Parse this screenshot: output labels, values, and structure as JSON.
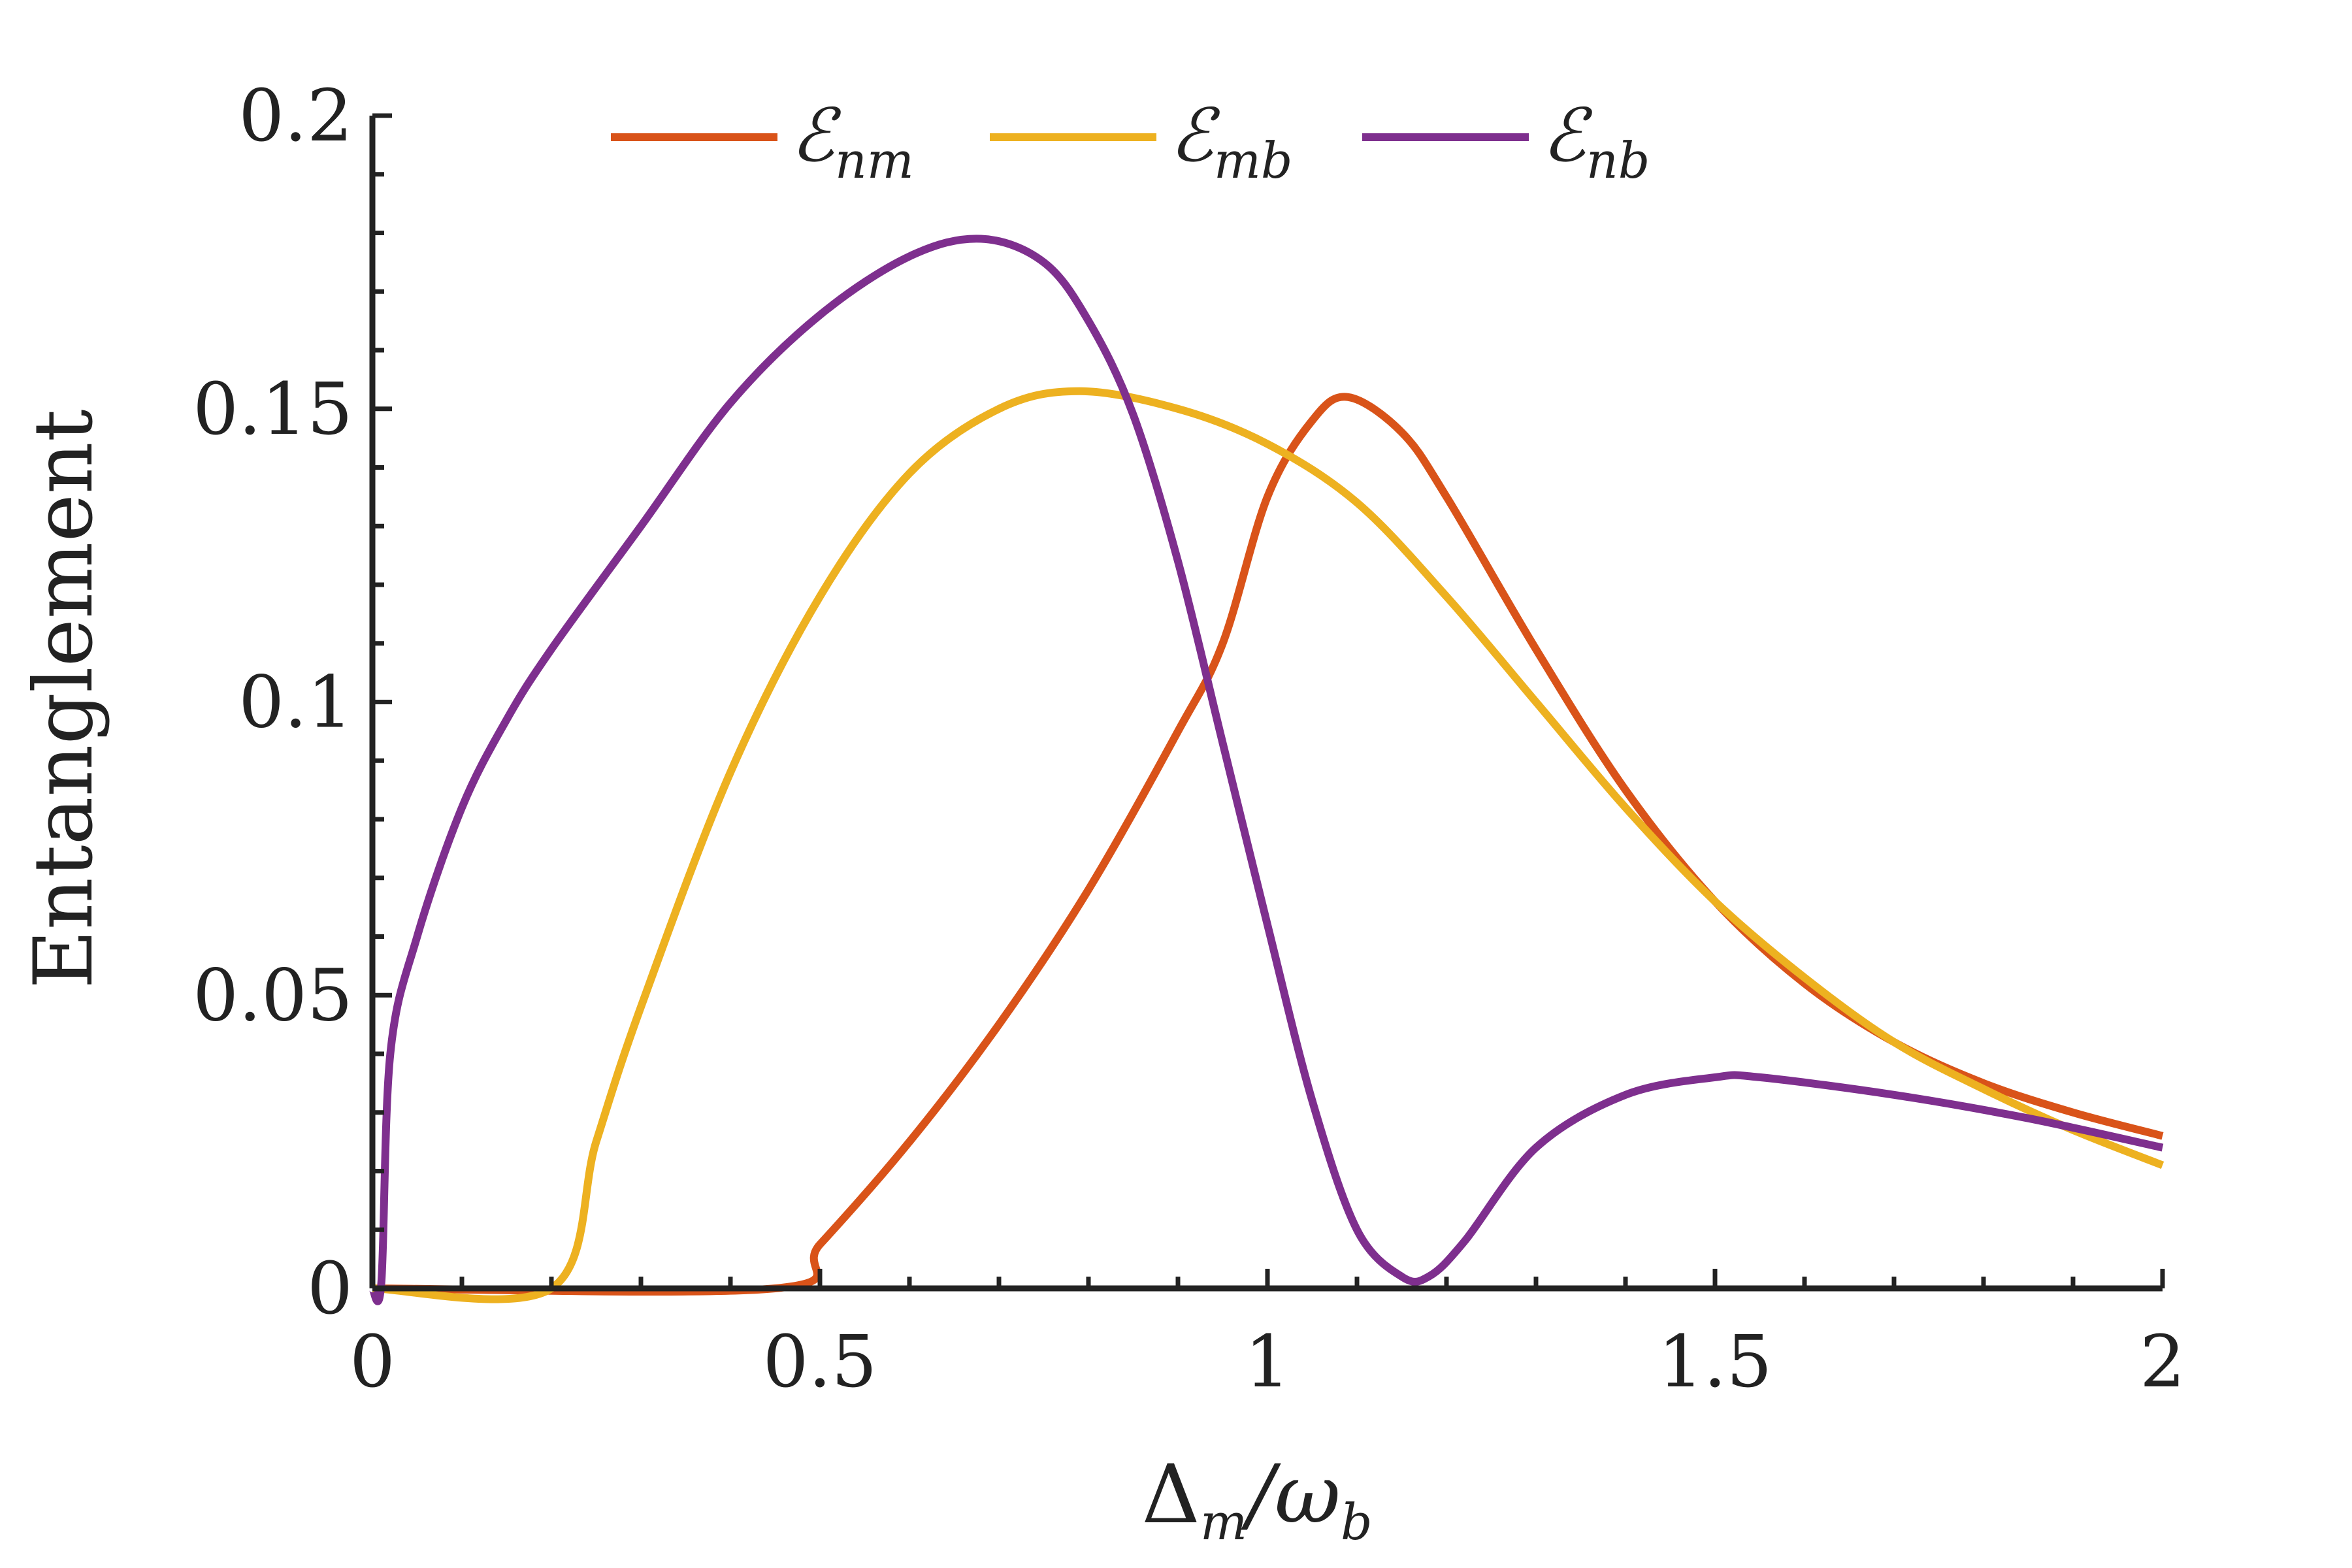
{
  "chart_data": {
    "type": "line",
    "title": "",
    "xlabel": {
      "main": "Δ",
      "sub1": "m",
      "sep": "/ω",
      "sub2": "b"
    },
    "ylabel": "Entanglement",
    "xlim": [
      0,
      2
    ],
    "ylim": [
      0,
      0.2
    ],
    "xticks": [
      {
        "value": 0,
        "label": "0"
      },
      {
        "value": 0.5,
        "label": "0.5"
      },
      {
        "value": 1,
        "label": "1"
      },
      {
        "value": 1.5,
        "label": "1.5"
      },
      {
        "value": 2,
        "label": "2"
      }
    ],
    "yticks": [
      {
        "value": 0,
        "label": "0"
      },
      {
        "value": 0.05,
        "label": "0.05"
      },
      {
        "value": 0.1,
        "label": "0.1"
      },
      {
        "value": 0.15,
        "label": "0.15"
      },
      {
        "value": 0.2,
        "label": "0.2"
      }
    ],
    "x_minor_step": 0.1,
    "y_minor_step": 0.01,
    "grid": false,
    "legend_position": "top",
    "series": [
      {
        "name": "ℰ",
        "name_sub": "nm",
        "color": "#D95319",
        "x": [
          0,
          0.45,
          0.5,
          0.6,
          0.7,
          0.8,
          0.9,
          0.95,
          1.0,
          1.05,
          1.09,
          1.15,
          1.2,
          1.3,
          1.4,
          1.5,
          1.6,
          1.7,
          1.8,
          1.9,
          2.0
        ],
        "y": [
          0,
          0,
          0.0075,
          0.025,
          0.045,
          0.068,
          0.095,
          0.11,
          0.135,
          0.148,
          0.152,
          0.146,
          0.135,
          0.109,
          0.085,
          0.066,
          0.052,
          0.042,
          0.035,
          0.03,
          0.026
        ]
      },
      {
        "name": "ℰ",
        "name_sub": "mb",
        "color": "#EDB120",
        "x": [
          0,
          0.2,
          0.25,
          0.3,
          0.4,
          0.5,
          0.6,
          0.7,
          0.79,
          0.9,
          1.0,
          1.1,
          1.2,
          1.3,
          1.4,
          1.5,
          1.6,
          1.7,
          1.8,
          1.9,
          2.0
        ],
        "y": [
          0,
          0,
          0.025,
          0.048,
          0.088,
          0.118,
          0.139,
          0.15,
          0.153,
          0.15,
          0.144,
          0.134,
          0.118,
          0.1,
          0.082,
          0.066,
          0.053,
          0.042,
          0.034,
          0.027,
          0.021
        ]
      },
      {
        "name": "ℰ",
        "name_sub": "nb",
        "color": "#7E2F8E",
        "x": [
          0,
          0.01,
          0.02,
          0.05,
          0.1,
          0.15,
          0.2,
          0.3,
          0.4,
          0.5,
          0.6,
          0.68,
          0.75,
          0.8,
          0.85,
          0.9,
          0.95,
          1.0,
          1.05,
          1.1,
          1.15,
          1.18,
          1.22,
          1.3,
          1.4,
          1.5,
          1.55,
          1.7,
          1.85,
          2.0
        ],
        "y": [
          0,
          0.001,
          0.04,
          0.06,
          0.082,
          0.097,
          0.109,
          0.13,
          0.151,
          0.166,
          0.176,
          0.179,
          0.175,
          0.165,
          0.149,
          0.124,
          0.093,
          0.062,
          0.032,
          0.01,
          0.002,
          0.002,
          0.008,
          0.024,
          0.033,
          0.036,
          0.036,
          0.033,
          0.029,
          0.024
        ]
      }
    ]
  }
}
